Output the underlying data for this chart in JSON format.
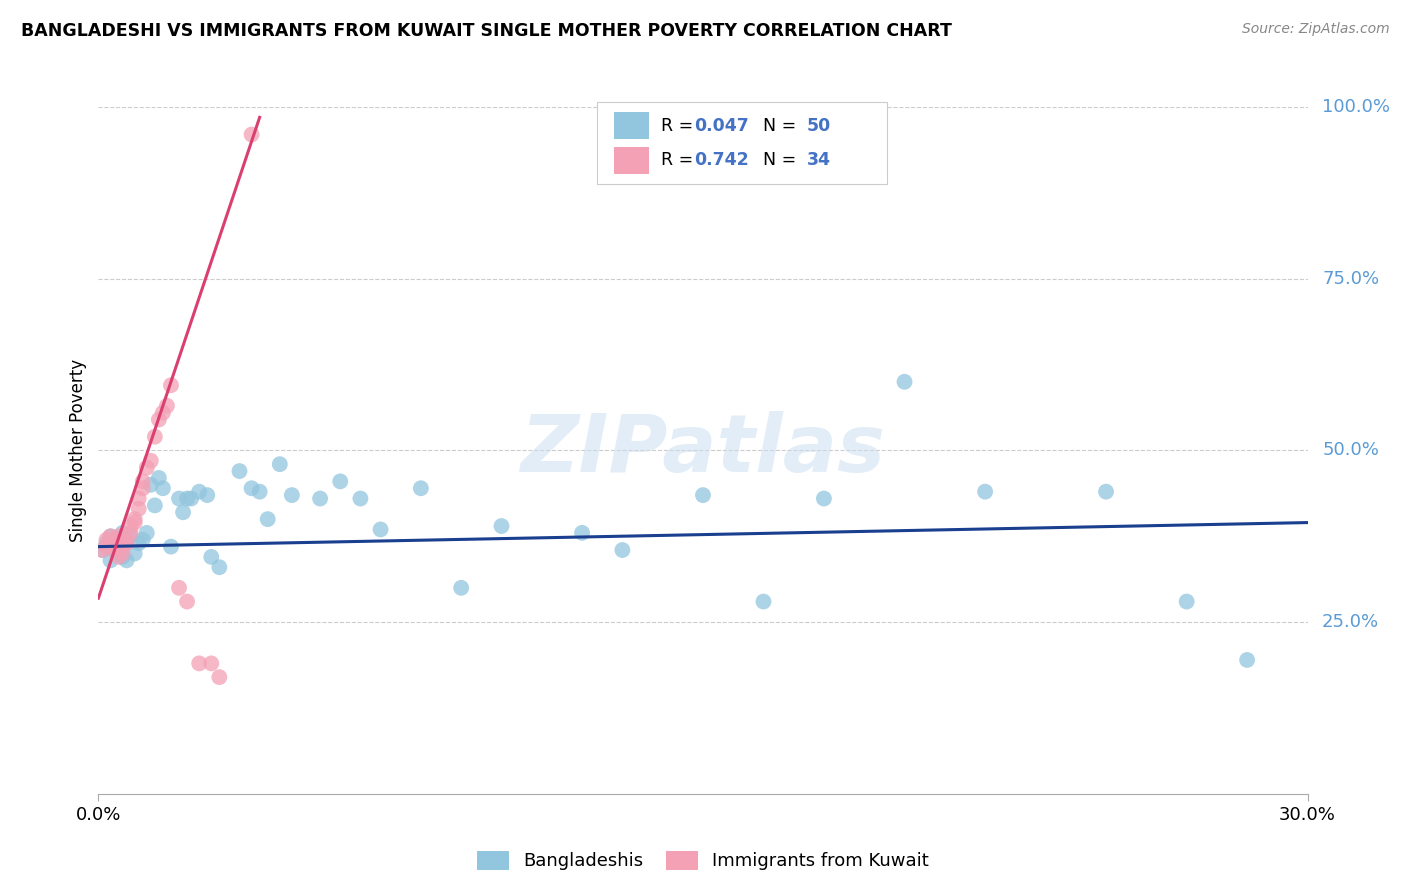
{
  "title": "BANGLADESHI VS IMMIGRANTS FROM KUWAIT SINGLE MOTHER POVERTY CORRELATION CHART",
  "source": "Source: ZipAtlas.com",
  "ylabel": "Single Mother Poverty",
  "legend_label1": "Bangladeshis",
  "legend_label2": "Immigrants from Kuwait",
  "R1": 0.047,
  "N1": 50,
  "R2": 0.742,
  "N2": 34,
  "color_blue": "#92c5de",
  "color_pink": "#f4a0b5",
  "line_blue": "#1a3f8f",
  "line_pink": "#d94070",
  "watermark_text": "ZIPatlas",
  "xlim": [
    0,
    0.3
  ],
  "ylim": [
    0,
    1.0
  ],
  "blue_x": [
    0.001,
    0.002,
    0.003,
    0.003,
    0.004,
    0.005,
    0.006,
    0.006,
    0.007,
    0.008,
    0.009,
    0.01,
    0.011,
    0.012,
    0.013,
    0.014,
    0.015,
    0.016,
    0.018,
    0.02,
    0.021,
    0.022,
    0.023,
    0.025,
    0.027,
    0.028,
    0.03,
    0.035,
    0.038,
    0.04,
    0.042,
    0.045,
    0.048,
    0.055,
    0.06,
    0.065,
    0.07,
    0.08,
    0.09,
    0.1,
    0.12,
    0.13,
    0.15,
    0.165,
    0.18,
    0.2,
    0.22,
    0.25,
    0.27,
    0.285
  ],
  "blue_y": [
    0.355,
    0.365,
    0.34,
    0.375,
    0.355,
    0.36,
    0.345,
    0.38,
    0.34,
    0.375,
    0.35,
    0.365,
    0.37,
    0.38,
    0.45,
    0.42,
    0.46,
    0.445,
    0.36,
    0.43,
    0.41,
    0.43,
    0.43,
    0.44,
    0.435,
    0.345,
    0.33,
    0.47,
    0.445,
    0.44,
    0.4,
    0.48,
    0.435,
    0.43,
    0.455,
    0.43,
    0.385,
    0.445,
    0.3,
    0.39,
    0.38,
    0.355,
    0.435,
    0.28,
    0.43,
    0.6,
    0.44,
    0.44,
    0.28,
    0.195
  ],
  "pink_x": [
    0.001,
    0.002,
    0.002,
    0.003,
    0.003,
    0.004,
    0.004,
    0.005,
    0.005,
    0.006,
    0.006,
    0.007,
    0.007,
    0.008,
    0.008,
    0.009,
    0.009,
    0.01,
    0.01,
    0.011,
    0.011,
    0.012,
    0.013,
    0.014,
    0.015,
    0.016,
    0.017,
    0.018,
    0.02,
    0.022,
    0.025,
    0.028,
    0.03,
    0.038
  ],
  "pink_y": [
    0.355,
    0.36,
    0.37,
    0.375,
    0.365,
    0.355,
    0.37,
    0.375,
    0.345,
    0.36,
    0.35,
    0.37,
    0.365,
    0.38,
    0.39,
    0.395,
    0.4,
    0.415,
    0.43,
    0.445,
    0.455,
    0.475,
    0.485,
    0.52,
    0.545,
    0.555,
    0.565,
    0.595,
    0.3,
    0.28,
    0.19,
    0.19,
    0.17,
    0.96
  ],
  "pink_line_x0": 0.0,
  "pink_line_y0": 0.285,
  "pink_line_x1": 0.04,
  "pink_line_y1": 0.985,
  "blue_line_x0": 0.0,
  "blue_line_y0": 0.36,
  "blue_line_x1": 0.3,
  "blue_line_y1": 0.395
}
